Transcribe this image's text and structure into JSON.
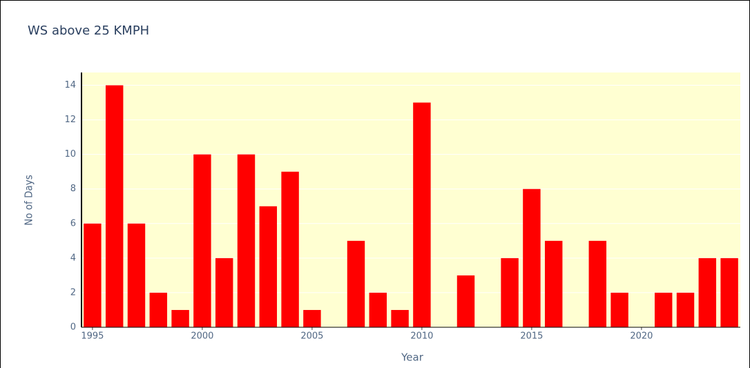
{
  "chart_data": {
    "type": "bar",
    "title": "WS above 25 KMPH",
    "x": [
      1995,
      1996,
      1997,
      1998,
      1999,
      2000,
      2001,
      2002,
      2003,
      2004,
      2005,
      2007,
      2008,
      2009,
      2010,
      2012,
      2014,
      2015,
      2016,
      2018,
      2019,
      2021,
      2022,
      2023,
      2024
    ],
    "values": [
      6,
      14,
      6,
      2,
      1,
      10,
      4,
      10,
      7,
      9,
      1,
      5,
      2,
      1,
      13,
      3,
      4,
      8,
      5,
      5,
      2,
      2,
      2,
      4,
      4
    ],
    "color": "#ff0000",
    "xlabel": "Year",
    "ylabel": "No of Days",
    "xlim": [
      1994.5,
      2024.5
    ],
    "xticks": [
      1995,
      2000,
      2005,
      2010,
      2015,
      2020
    ],
    "ylim": [
      0,
      14.74
    ],
    "yticks": [
      0,
      2,
      4,
      6,
      8,
      10,
      12,
      14
    ],
    "grid": true
  }
}
